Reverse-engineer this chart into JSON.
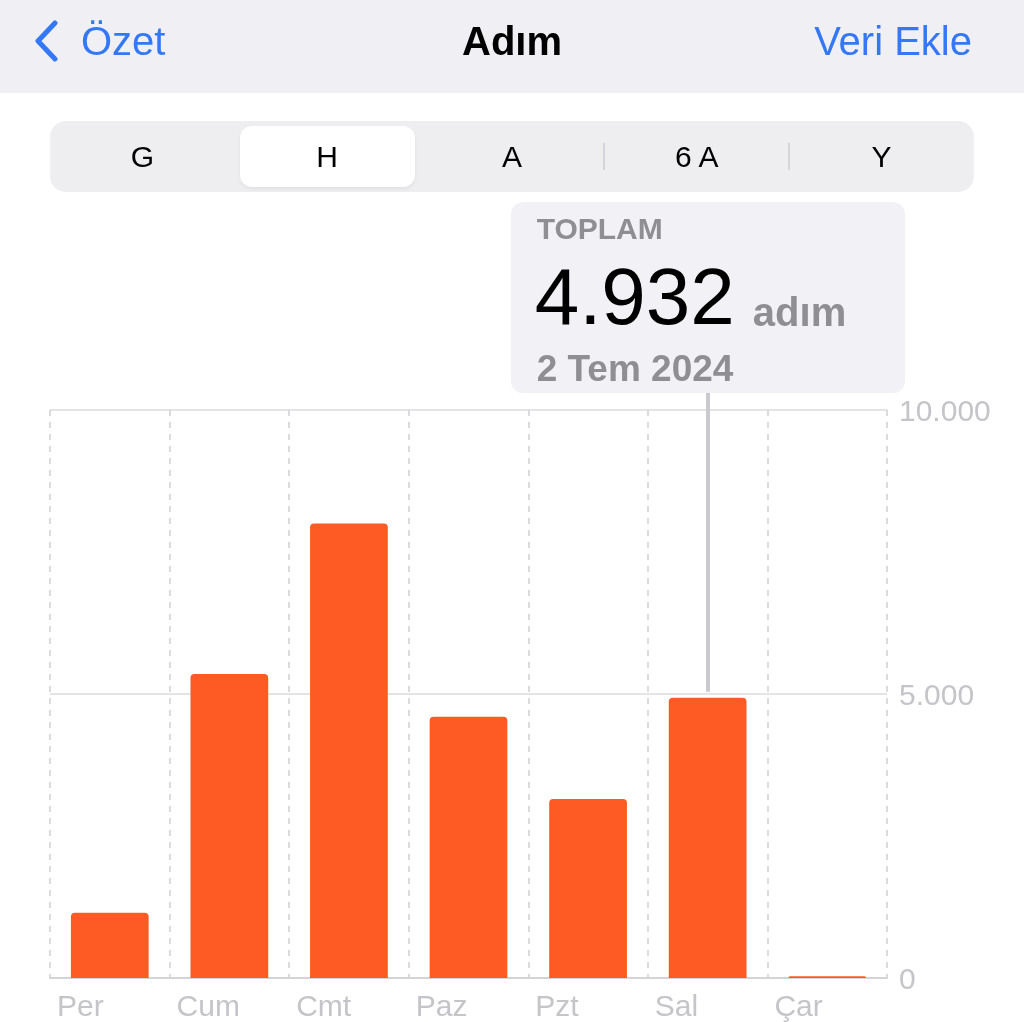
{
  "chart_data": {
    "type": "bar",
    "title": "Adım",
    "categories": [
      "Per",
      "Cum",
      "Cmt",
      "Paz",
      "Pzt",
      "Sal",
      "Çar"
    ],
    "values": [
      1150,
      5350,
      8000,
      4600,
      3150,
      4932,
      30
    ],
    "color": "#fe5b24",
    "value_labels": [
      null,
      null,
      null,
      null,
      null,
      "4.932",
      null
    ],
    "ylim": [
      0,
      10000
    ],
    "yticks": [
      0,
      {
        "value": 5000,
        "label": "5.000"
      },
      {
        "value": 10000,
        "label": "10.000"
      }
    ],
    "grid": true,
    "annotations": [
      "Özet",
      "Veri Ekle",
      "G",
      "H",
      "A",
      "6 A",
      "Y",
      "TOPLAM",
      "adım",
      "2 Tem 2024"
    ]
  }
}
